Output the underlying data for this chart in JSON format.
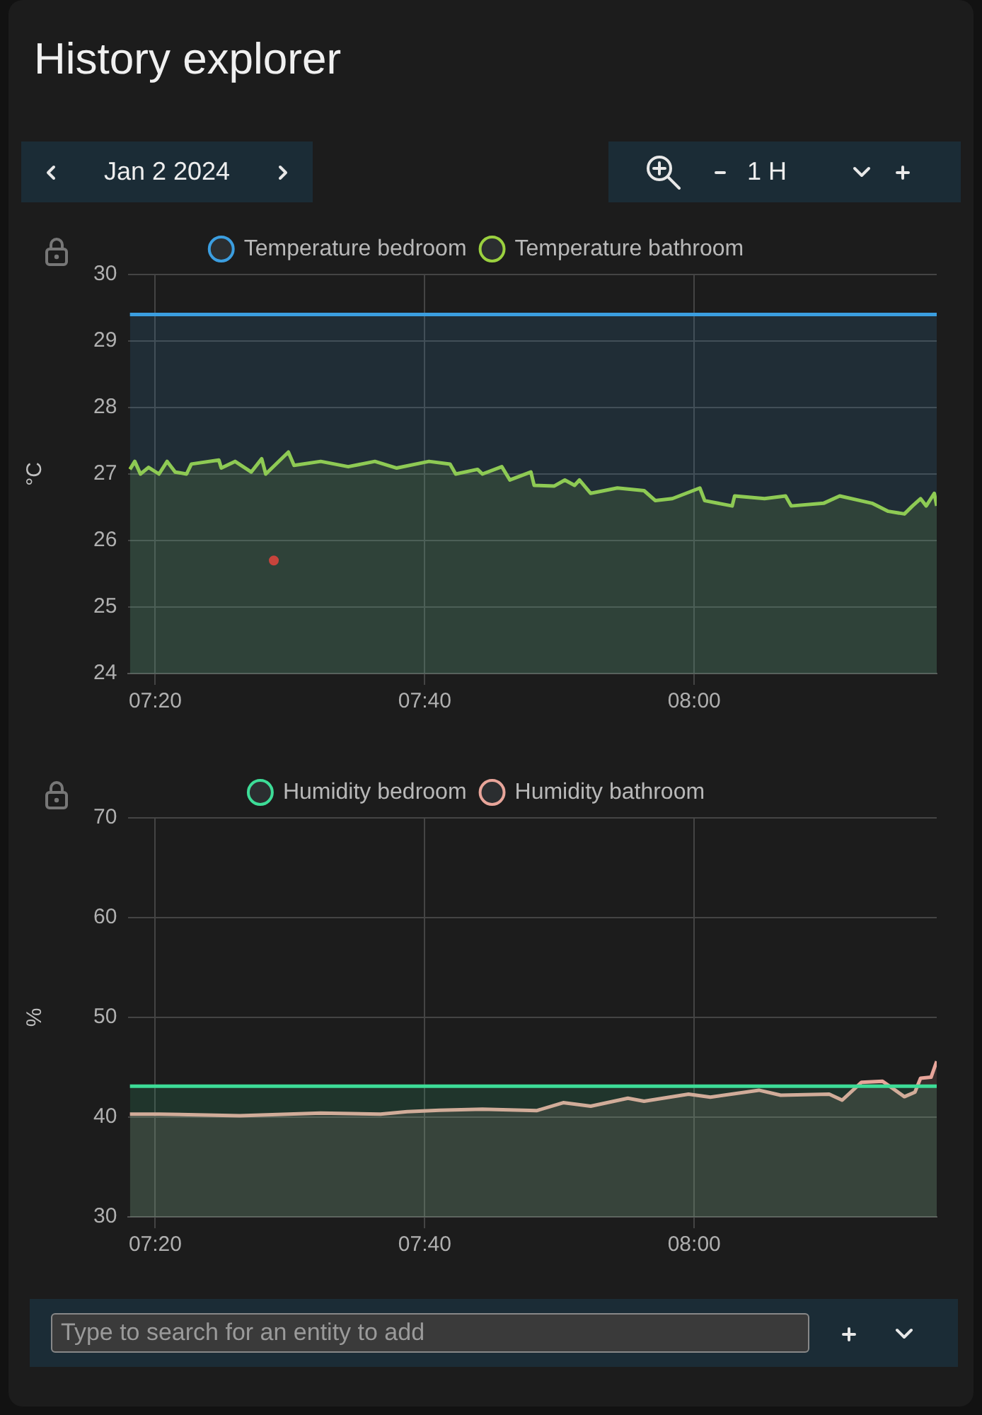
{
  "chart_data": [
    {
      "type": "area",
      "title": "History explorer",
      "ylabel": "°C",
      "legend": "top",
      "grid": true,
      "annotations": [
        "Jan 2 2024",
        "1 H"
      ],
      "xlim": [
        7.3,
        8.3
      ],
      "xticks": [
        {
          "value": 7.3333,
          "label": "07:20"
        },
        {
          "value": 7.6667,
          "label": "07:40"
        },
        {
          "value": 8,
          "label": "08:00"
        }
      ],
      "ylim": [
        24,
        30
      ],
      "yticks": [
        24,
        25,
        26,
        27,
        28,
        29,
        30
      ],
      "series": [
        {
          "name": "Temperature bedroom",
          "color": "#3b9ee0",
          "x": [
            7.302,
            8.3
          ],
          "values": [
            29.4,
            29.4
          ]
        },
        {
          "name": "Temperature bathroom",
          "color": "#9bd13f",
          "x": [
            7.302,
            7.308,
            7.315,
            7.325,
            7.338,
            7.348,
            7.358,
            7.372,
            7.378,
            7.412,
            7.415,
            7.432,
            7.452,
            7.465,
            7.47,
            7.498,
            7.505,
            7.538,
            7.572,
            7.605,
            7.632,
            7.672,
            7.698,
            7.705,
            7.732,
            7.738,
            7.762,
            7.772,
            7.798,
            7.802,
            7.827,
            7.84,
            7.852,
            7.858,
            7.872,
            7.905,
            7.938,
            7.952,
            7.973,
            8.007,
            8.013,
            8.047,
            8.05,
            8.087,
            8.113,
            8.12,
            8.16,
            8.18,
            8.22,
            8.24,
            8.26,
            8.27,
            8.28,
            8.287,
            8.297,
            8.3
          ],
          "values": [
            27.07,
            27.19,
            27.0,
            27.1,
            27.0,
            27.19,
            27.03,
            27.0,
            27.15,
            27.21,
            27.09,
            27.19,
            27.03,
            27.23,
            27.0,
            27.33,
            27.13,
            27.19,
            27.11,
            27.19,
            27.09,
            27.19,
            27.15,
            27.0,
            27.07,
            27.0,
            27.11,
            26.91,
            27.03,
            26.83,
            26.82,
            26.91,
            26.83,
            26.91,
            26.71,
            26.79,
            26.75,
            26.6,
            26.63,
            26.79,
            26.6,
            26.52,
            26.67,
            26.63,
            26.67,
            26.52,
            26.56,
            26.67,
            26.56,
            26.44,
            26.4,
            26.52,
            26.63,
            26.52,
            26.71,
            26.52
          ]
        },
        {
          "type": "scatter",
          "marker": "circle",
          "color": "#e82020",
          "x": [
            7.48
          ],
          "values": [
            25.7
          ]
        }
      ]
    },
    {
      "type": "area",
      "ylabel": "%",
      "legend": "top",
      "grid": true,
      "annotations": [
        "Type to search for an entity to add"
      ],
      "xlim": [
        7.3,
        8.3
      ],
      "xticks": [
        {
          "value": 7.3333,
          "label": "07:20"
        },
        {
          "value": 7.6667,
          "label": "07:40"
        },
        {
          "value": 8,
          "label": "08:00"
        }
      ],
      "ylim": [
        30,
        70
      ],
      "yticks": [
        30,
        40,
        50,
        60,
        70
      ],
      "series": [
        {
          "name": "Humidity bedroom",
          "color": "#3ddc97",
          "x": [
            7.302,
            8.3
          ],
          "values": [
            43.1,
            43.1
          ]
        },
        {
          "name": "Humidity bathroom",
          "color": "#e8a59a",
          "x": [
            7.302,
            7.338,
            7.438,
            7.538,
            7.612,
            7.645,
            7.685,
            7.738,
            7.805,
            7.838,
            7.872,
            7.918,
            7.938,
            7.993,
            8.02,
            8.08,
            8.107,
            8.167,
            8.183,
            8.207,
            8.233,
            8.26,
            8.273,
            8.28,
            8.293,
            8.3
          ],
          "values": [
            40.3,
            40.3,
            40.15,
            40.4,
            40.3,
            40.55,
            40.7,
            40.8,
            40.65,
            41.45,
            41.1,
            41.9,
            41.6,
            42.3,
            42.0,
            42.7,
            42.2,
            42.3,
            41.7,
            43.5,
            43.6,
            42.05,
            42.5,
            43.9,
            44.0,
            45.6
          ]
        }
      ]
    }
  ]
}
